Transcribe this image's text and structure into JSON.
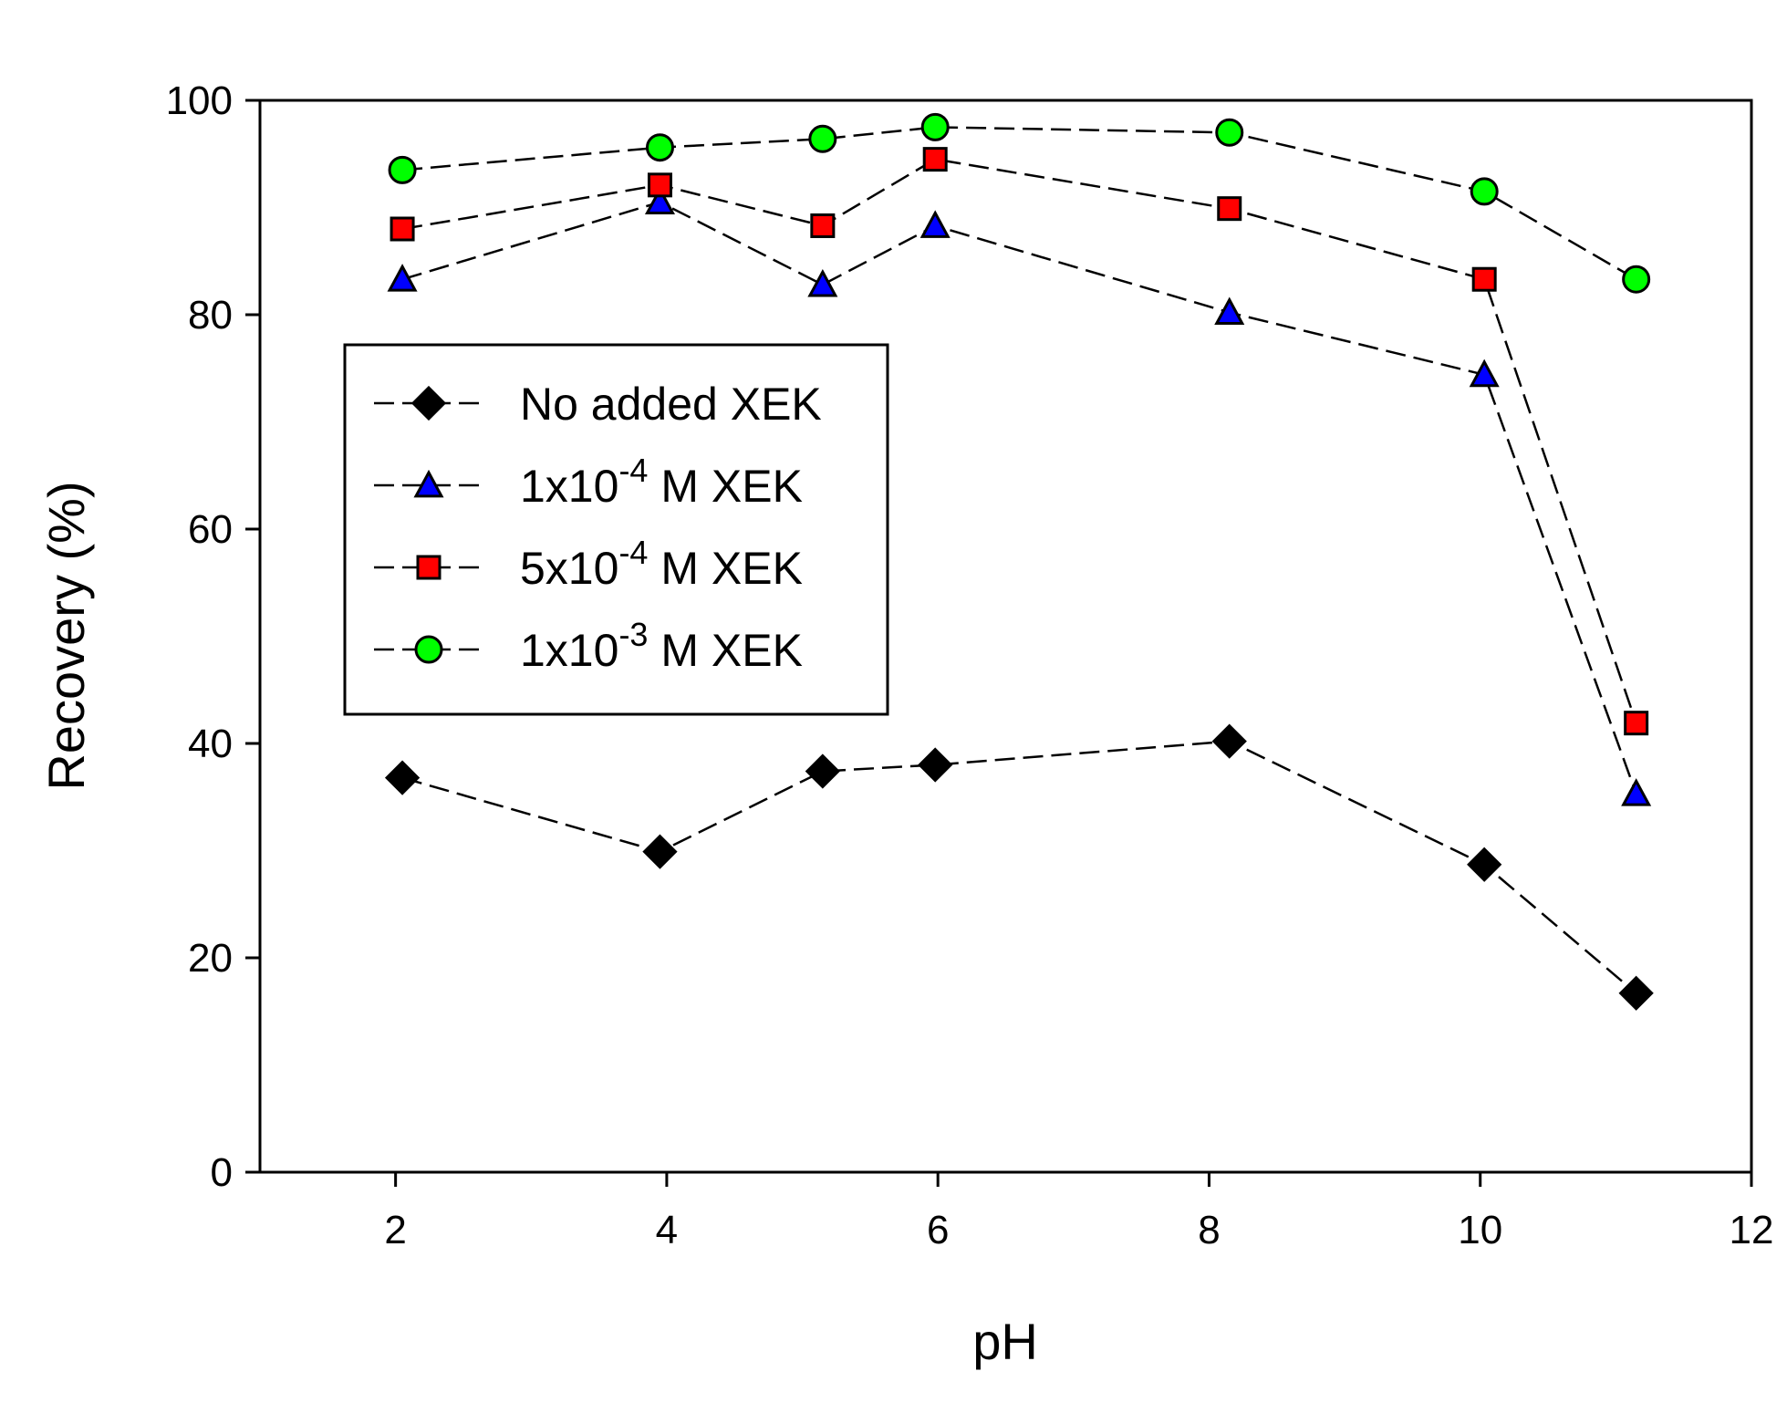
{
  "chart_data": {
    "type": "line",
    "xlabel": "pH",
    "ylabel": "Recovery (%)",
    "xlim": [
      1,
      12
    ],
    "ylim": [
      0,
      100
    ],
    "xticks": [
      2,
      4,
      6,
      8,
      10,
      12
    ],
    "yticks": [
      0,
      20,
      40,
      60,
      80,
      100
    ],
    "grid": false,
    "legend_position": "upper-left",
    "line_style": "dashed",
    "series": [
      {
        "name": "No added XEK",
        "legend": {
          "pre": "No added XEK",
          "sup": "",
          "post": ""
        },
        "marker": "diamond",
        "color": "#000000",
        "x": [
          2.05,
          3.95,
          5.15,
          5.98,
          8.15,
          10.03,
          11.15
        ],
        "y": [
          36.8,
          29.9,
          37.4,
          38.0,
          40.2,
          28.7,
          16.7
        ]
      },
      {
        "name": "1x10-4 M XEK",
        "legend": {
          "pre": "1x10",
          "sup": "-4",
          "post": " M XEK"
        },
        "marker": "triangle",
        "color": "#0000ff",
        "x": [
          2.05,
          3.95,
          5.15,
          5.98,
          8.15,
          10.03,
          11.15
        ],
        "y": [
          83.3,
          90.5,
          82.8,
          88.3,
          80.2,
          74.4,
          35.3
        ]
      },
      {
        "name": "5x10-4 M XEK",
        "legend": {
          "pre": "5x10",
          "sup": "-4",
          "post": " M XEK"
        },
        "marker": "square",
        "color": "#ff0000",
        "x": [
          2.05,
          3.95,
          5.15,
          5.98,
          8.15,
          10.03,
          11.15
        ],
        "y": [
          88.0,
          92.1,
          88.3,
          94.5,
          89.9,
          83.3,
          41.9
        ]
      },
      {
        "name": "1x10-3 M XEK",
        "legend": {
          "pre": "1x10",
          "sup": "-3",
          "post": " M XEK"
        },
        "marker": "circle",
        "color": "#00ff00",
        "x": [
          2.05,
          3.95,
          5.15,
          5.98,
          8.15,
          10.03,
          11.15
        ],
        "y": [
          93.5,
          95.6,
          96.4,
          97.5,
          97.0,
          91.5,
          83.3
        ]
      }
    ]
  }
}
